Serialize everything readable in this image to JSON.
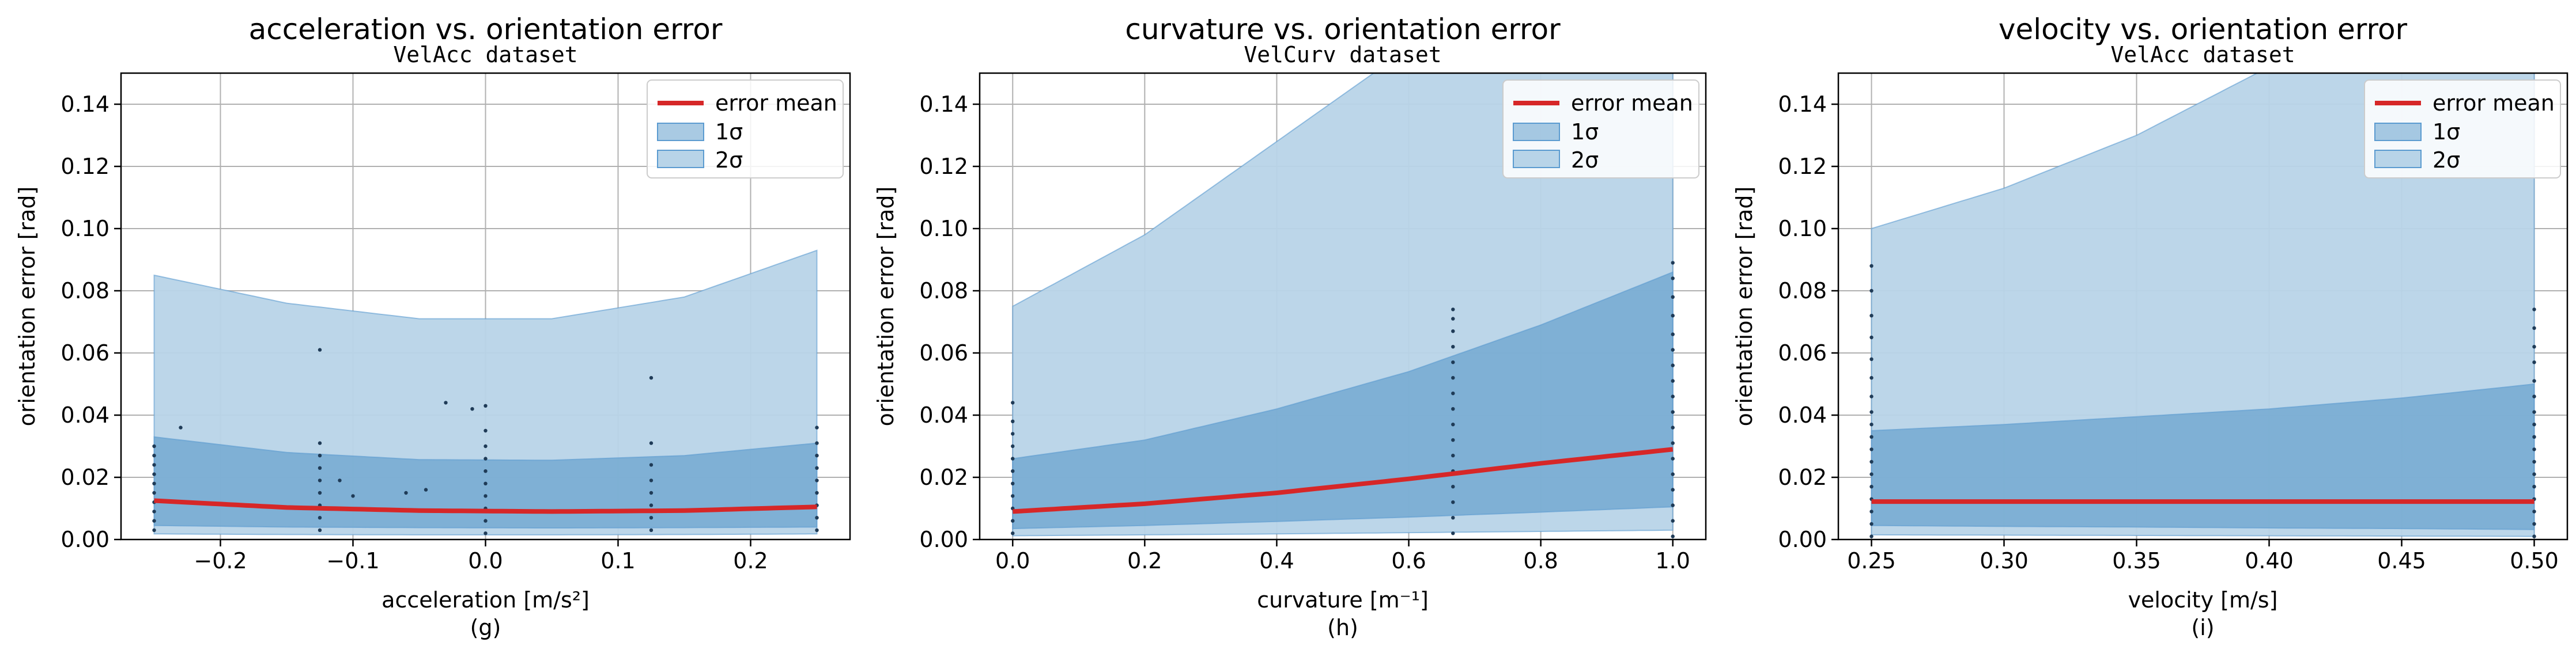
{
  "colors": {
    "mean": "#d62728",
    "band1": "#6fa6d0",
    "band2": "#b8d4e8",
    "band_edge": "#5b9bd0",
    "grid": "#b0b0b0",
    "points": "#1f3b57"
  },
  "chart_data": [
    {
      "type": "area",
      "title": "acceleration vs. orientation error",
      "subtitle": "VelAcc dataset",
      "xlabel": "acceleration [m/s²]",
      "ylabel": "orientation error [rad]",
      "caption": "(g)",
      "xlim": [
        -0.275,
        0.275
      ],
      "ylim": [
        0,
        0.15
      ],
      "xticks": [
        -0.2,
        -0.1,
        0.0,
        0.1,
        0.2
      ],
      "xtick_labels": [
        "−0.2",
        "−0.1",
        "0.0",
        "0.1",
        "0.2"
      ],
      "yticks": [
        0,
        0.02,
        0.04,
        0.06,
        0.08,
        0.1,
        0.12,
        0.14
      ],
      "ytick_labels": [
        "0.00",
        "0.02",
        "0.04",
        "0.06",
        "0.08",
        "0.10",
        "0.12",
        "0.14"
      ],
      "grid": true,
      "legend_position": "top-right",
      "legend": [
        "error mean",
        "1σ",
        "2σ"
      ],
      "series": [
        {
          "name": "error mean",
          "x": [
            -0.25,
            -0.15,
            -0.05,
            0.05,
            0.15,
            0.25
          ],
          "y": [
            0.0125,
            0.0103,
            0.0093,
            0.009,
            0.0093,
            0.0105
          ]
        },
        {
          "name": "1σ",
          "x": [
            -0.25,
            -0.15,
            -0.05,
            0.05,
            0.15,
            0.25
          ],
          "lower": [
            0.0045,
            0.004,
            0.0038,
            0.0037,
            0.0038,
            0.004
          ],
          "upper": [
            0.033,
            0.028,
            0.0257,
            0.0255,
            0.027,
            0.031
          ]
        },
        {
          "name": "2σ",
          "x": [
            -0.25,
            -0.15,
            -0.05,
            0.05,
            0.15,
            0.25
          ],
          "lower": [
            0.0018,
            0.0016,
            0.0015,
            0.0015,
            0.0016,
            0.0018
          ],
          "upper": [
            0.085,
            0.076,
            0.071,
            0.071,
            0.078,
            0.093
          ]
        }
      ],
      "points": [
        [
          -0.25,
          0.003
        ],
        [
          -0.25,
          0.006
        ],
        [
          -0.25,
          0.009
        ],
        [
          -0.25,
          0.012
        ],
        [
          -0.25,
          0.015
        ],
        [
          -0.25,
          0.018
        ],
        [
          -0.25,
          0.021
        ],
        [
          -0.25,
          0.024
        ],
        [
          -0.25,
          0.027
        ],
        [
          -0.25,
          0.03
        ],
        [
          -0.125,
          0.003
        ],
        [
          -0.125,
          0.007
        ],
        [
          -0.125,
          0.011
        ],
        [
          -0.125,
          0.015
        ],
        [
          -0.125,
          0.019
        ],
        [
          -0.125,
          0.023
        ],
        [
          -0.125,
          0.027
        ],
        [
          -0.125,
          0.031
        ],
        [
          -0.125,
          0.061
        ],
        [
          0.0,
          0.002
        ],
        [
          0.0,
          0.006
        ],
        [
          0.0,
          0.01
        ],
        [
          0.0,
          0.014
        ],
        [
          0.0,
          0.018
        ],
        [
          0.0,
          0.022
        ],
        [
          0.0,
          0.026
        ],
        [
          0.0,
          0.03
        ],
        [
          0.0,
          0.035
        ],
        [
          0.0,
          0.043
        ],
        [
          0.125,
          0.003
        ],
        [
          0.125,
          0.007
        ],
        [
          0.125,
          0.011
        ],
        [
          0.125,
          0.015
        ],
        [
          0.125,
          0.019
        ],
        [
          0.125,
          0.024
        ],
        [
          0.125,
          0.031
        ],
        [
          0.125,
          0.052
        ],
        [
          0.25,
          0.003
        ],
        [
          0.25,
          0.007
        ],
        [
          0.25,
          0.011
        ],
        [
          0.25,
          0.015
        ],
        [
          0.25,
          0.019
        ],
        [
          0.25,
          0.023
        ],
        [
          0.25,
          0.027
        ],
        [
          0.25,
          0.031
        ],
        [
          0.25,
          0.036
        ],
        [
          -0.23,
          0.036
        ],
        [
          -0.11,
          0.019
        ],
        [
          -0.1,
          0.014
        ],
        [
          -0.06,
          0.015
        ],
        [
          -0.045,
          0.016
        ],
        [
          -0.03,
          0.044
        ],
        [
          -0.01,
          0.042
        ]
      ]
    },
    {
      "type": "area",
      "title": "curvature vs. orientation error",
      "subtitle": "VelCurv dataset",
      "xlabel": "curvature [m⁻¹]",
      "ylabel": "orientation error [rad]",
      "caption": "(h)",
      "xlim": [
        -0.05,
        1.05
      ],
      "ylim": [
        0,
        0.15
      ],
      "xticks": [
        0.0,
        0.2,
        0.4,
        0.6,
        0.8,
        1.0
      ],
      "xtick_labels": [
        "0.0",
        "0.2",
        "0.4",
        "0.6",
        "0.8",
        "1.0"
      ],
      "yticks": [
        0,
        0.02,
        0.04,
        0.06,
        0.08,
        0.1,
        0.12,
        0.14
      ],
      "ytick_labels": [
        "0.00",
        "0.02",
        "0.04",
        "0.06",
        "0.08",
        "0.10",
        "0.12",
        "0.14"
      ],
      "grid": true,
      "legend_position": "top-right",
      "legend": [
        "error mean",
        "1σ",
        "2σ"
      ],
      "series": [
        {
          "name": "error mean",
          "x": [
            0.0,
            0.2,
            0.4,
            0.6,
            0.8,
            1.0
          ],
          "y": [
            0.009,
            0.0115,
            0.015,
            0.0195,
            0.0245,
            0.029
          ]
        },
        {
          "name": "1σ",
          "x": [
            0.0,
            0.2,
            0.4,
            0.6,
            0.8,
            1.0
          ],
          "lower": [
            0.0035,
            0.0045,
            0.0058,
            0.0072,
            0.0088,
            0.0105
          ],
          "upper": [
            0.026,
            0.032,
            0.042,
            0.054,
            0.069,
            0.086
          ]
        },
        {
          "name": "2σ",
          "x": [
            0.0,
            0.2,
            0.4,
            0.6,
            0.8,
            1.0
          ],
          "lower": [
            0.0012,
            0.0015,
            0.0018,
            0.0022,
            0.0026,
            0.003
          ],
          "upper": [
            0.075,
            0.098,
            0.128,
            0.158,
            0.185,
            0.21
          ]
        }
      ],
      "points": [
        [
          0.0,
          0.002
        ],
        [
          0.0,
          0.006
        ],
        [
          0.0,
          0.01
        ],
        [
          0.0,
          0.014
        ],
        [
          0.0,
          0.018
        ],
        [
          0.0,
          0.022
        ],
        [
          0.0,
          0.026
        ],
        [
          0.0,
          0.03
        ],
        [
          0.0,
          0.034
        ],
        [
          0.0,
          0.038
        ],
        [
          0.0,
          0.044
        ],
        [
          0.667,
          0.002
        ],
        [
          0.667,
          0.007
        ],
        [
          0.667,
          0.012
        ],
        [
          0.667,
          0.017
        ],
        [
          0.667,
          0.022
        ],
        [
          0.667,
          0.027
        ],
        [
          0.667,
          0.032
        ],
        [
          0.667,
          0.037
        ],
        [
          0.667,
          0.042
        ],
        [
          0.667,
          0.047
        ],
        [
          0.667,
          0.052
        ],
        [
          0.667,
          0.057
        ],
        [
          0.667,
          0.062
        ],
        [
          0.667,
          0.067
        ],
        [
          0.667,
          0.071
        ],
        [
          0.667,
          0.074
        ],
        [
          1.0,
          0.001
        ],
        [
          1.0,
          0.006
        ],
        [
          1.0,
          0.011
        ],
        [
          1.0,
          0.016
        ],
        [
          1.0,
          0.021
        ],
        [
          1.0,
          0.026
        ],
        [
          1.0,
          0.031
        ],
        [
          1.0,
          0.036
        ],
        [
          1.0,
          0.041
        ],
        [
          1.0,
          0.046
        ],
        [
          1.0,
          0.051
        ],
        [
          1.0,
          0.056
        ],
        [
          1.0,
          0.061
        ],
        [
          1.0,
          0.066
        ],
        [
          1.0,
          0.072
        ],
        [
          1.0,
          0.078
        ],
        [
          1.0,
          0.084
        ],
        [
          1.0,
          0.089
        ]
      ]
    },
    {
      "type": "area",
      "title": "velocity vs. orientation error",
      "subtitle": "VelAcc dataset",
      "xlabel": "velocity [m/s]",
      "ylabel": "orientation error [rad]",
      "caption": "(i)",
      "xlim": [
        0.2375,
        0.5125
      ],
      "ylim": [
        0,
        0.15
      ],
      "xticks": [
        0.25,
        0.3,
        0.35,
        0.4,
        0.45,
        0.5
      ],
      "xtick_labels": [
        "0.25",
        "0.30",
        "0.35",
        "0.40",
        "0.45",
        "0.50"
      ],
      "yticks": [
        0,
        0.02,
        0.04,
        0.06,
        0.08,
        0.1,
        0.12,
        0.14
      ],
      "ytick_labels": [
        "0.00",
        "0.02",
        "0.04",
        "0.06",
        "0.08",
        "0.10",
        "0.12",
        "0.14"
      ],
      "grid": true,
      "legend_position": "top-right",
      "legend": [
        "error mean",
        "1σ",
        "2σ"
      ],
      "series": [
        {
          "name": "error mean",
          "x": [
            0.25,
            0.3,
            0.35,
            0.4,
            0.45,
            0.5
          ],
          "y": [
            0.0122,
            0.0122,
            0.0122,
            0.0122,
            0.0122,
            0.0122
          ]
        },
        {
          "name": "1σ",
          "x": [
            0.25,
            0.3,
            0.35,
            0.4,
            0.45,
            0.5
          ],
          "lower": [
            0.0045,
            0.0042,
            0.004,
            0.0037,
            0.0035,
            0.0032
          ],
          "upper": [
            0.035,
            0.037,
            0.0395,
            0.042,
            0.0455,
            0.05
          ]
        },
        {
          "name": "2σ",
          "x": [
            0.25,
            0.3,
            0.35,
            0.4,
            0.45,
            0.5
          ],
          "lower": [
            0.0015,
            0.0014,
            0.0013,
            0.0012,
            0.0011,
            0.001
          ],
          "upper": [
            0.1,
            0.113,
            0.13,
            0.152,
            0.18,
            0.215
          ]
        }
      ],
      "points": [
        [
          0.25,
          0.001
        ],
        [
          0.25,
          0.005
        ],
        [
          0.25,
          0.009
        ],
        [
          0.25,
          0.013
        ],
        [
          0.25,
          0.017
        ],
        [
          0.25,
          0.021
        ],
        [
          0.25,
          0.025
        ],
        [
          0.25,
          0.029
        ],
        [
          0.25,
          0.033
        ],
        [
          0.25,
          0.037
        ],
        [
          0.25,
          0.041
        ],
        [
          0.25,
          0.046
        ],
        [
          0.25,
          0.052
        ],
        [
          0.25,
          0.058
        ],
        [
          0.25,
          0.065
        ],
        [
          0.25,
          0.072
        ],
        [
          0.25,
          0.08
        ],
        [
          0.25,
          0.088
        ],
        [
          0.5,
          0.001
        ],
        [
          0.5,
          0.005
        ],
        [
          0.5,
          0.009
        ],
        [
          0.5,
          0.013
        ],
        [
          0.5,
          0.017
        ],
        [
          0.5,
          0.021
        ],
        [
          0.5,
          0.025
        ],
        [
          0.5,
          0.029
        ],
        [
          0.5,
          0.033
        ],
        [
          0.5,
          0.037
        ],
        [
          0.5,
          0.041
        ],
        [
          0.5,
          0.046
        ],
        [
          0.5,
          0.051
        ],
        [
          0.5,
          0.057
        ],
        [
          0.5,
          0.062
        ],
        [
          0.5,
          0.068
        ],
        [
          0.5,
          0.074
        ]
      ]
    }
  ]
}
